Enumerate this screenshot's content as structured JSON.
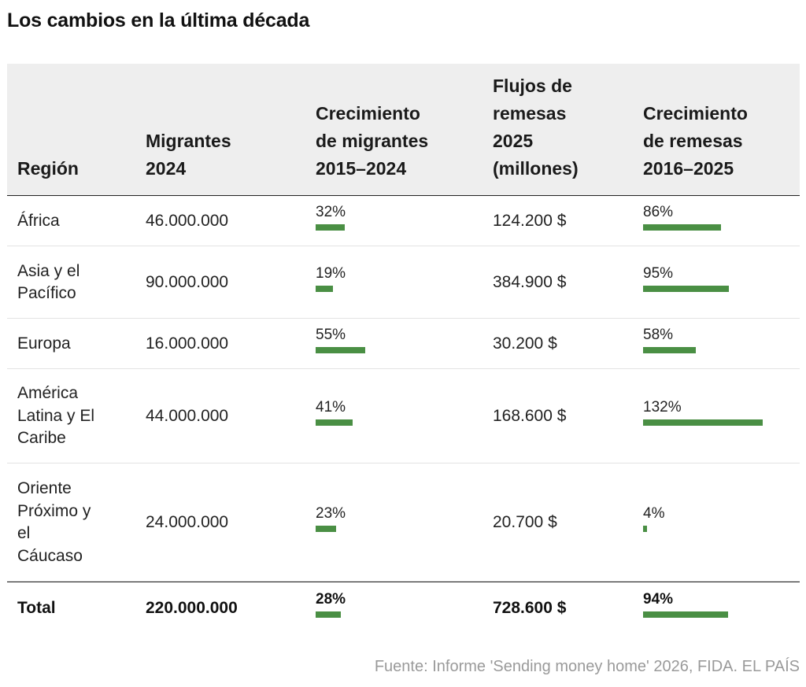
{
  "title": "Los cambios en la última década",
  "headers": {
    "region": [
      "Región"
    ],
    "migrants": [
      "Migrantes",
      "2024"
    ],
    "migrant_growth": [
      "Crecimiento",
      "de migrantes",
      "2015–2024"
    ],
    "remittances": [
      "Flujos de",
      "remesas",
      "2025",
      "(millones)"
    ],
    "remittance_growth": [
      "Crecimiento",
      "de remesas",
      "2016–2025"
    ]
  },
  "rows": [
    {
      "region_lines": [
        "África"
      ],
      "migrants": "46.000.000",
      "migrant_growth_label": "32%",
      "migrant_growth": 32,
      "remittances": "124.200 $",
      "remittance_growth_label": "86%",
      "remittance_growth": 86
    },
    {
      "region_lines": [
        "Asia y el",
        "Pacífico"
      ],
      "migrants": "90.000.000",
      "migrant_growth_label": "19%",
      "migrant_growth": 19,
      "remittances": "384.900 $",
      "remittance_growth_label": "95%",
      "remittance_growth": 95
    },
    {
      "region_lines": [
        "Europa"
      ],
      "migrants": "16.000.000",
      "migrant_growth_label": "55%",
      "migrant_growth": 55,
      "remittances": "30.200 $",
      "remittance_growth_label": "58%",
      "remittance_growth": 58
    },
    {
      "region_lines": [
        "América",
        "Latina y El",
        "Caribe"
      ],
      "migrants": "44.000.000",
      "migrant_growth_label": "41%",
      "migrant_growth": 41,
      "remittances": "168.600 $",
      "remittance_growth_label": "132%",
      "remittance_growth": 132
    },
    {
      "region_lines": [
        "Oriente",
        "Próximo y",
        "el",
        "Cáucaso"
      ],
      "migrants": "24.000.000",
      "migrant_growth_label": "23%",
      "migrant_growth": 23,
      "remittances": "20.700 $",
      "remittance_growth_label": "4%",
      "remittance_growth": 4
    }
  ],
  "total": {
    "region_lines": [
      "Total"
    ],
    "migrants": "220.000.000",
    "migrant_growth_label": "28%",
    "migrant_growth": 28,
    "remittances": "728.600 $",
    "remittance_growth_label": "94%",
    "remittance_growth": 94
  },
  "source": "Fuente: Informe 'Sending money home' 2026, FIDA. EL PAÍS",
  "colors": {
    "bar": "#4a8f44",
    "header_bg": "#eeeeee",
    "source_text": "#9a9a9a"
  },
  "chart_data": {
    "type": "table",
    "title": "Los cambios en la última década",
    "columns": [
      "Región",
      "Migrantes 2024",
      "Crecimiento de migrantes 2015–2024",
      "Flujos de remesas 2025 (millones)",
      "Crecimiento de remesas 2016–2025"
    ],
    "rows": [
      [
        "África",
        46000000,
        32,
        124200,
        86
      ],
      [
        "Asia y el Pacífico",
        90000000,
        19,
        384900,
        95
      ],
      [
        "Europa",
        16000000,
        55,
        30200,
        58
      ],
      [
        "América Latina y El Caribe",
        44000000,
        41,
        168600,
        132
      ],
      [
        "Oriente Próximo y el Cáucaso",
        24000000,
        23,
        20700,
        4
      ],
      [
        "Total",
        220000000,
        28,
        728600,
        94
      ]
    ],
    "bar_series": [
      {
        "column": "Crecimiento de migrantes 2015–2024",
        "values": [
          32,
          19,
          55,
          41,
          23,
          28
        ]
      },
      {
        "column": "Crecimiento de remesas 2016–2025",
        "values": [
          86,
          95,
          58,
          132,
          4,
          94
        ]
      }
    ]
  }
}
